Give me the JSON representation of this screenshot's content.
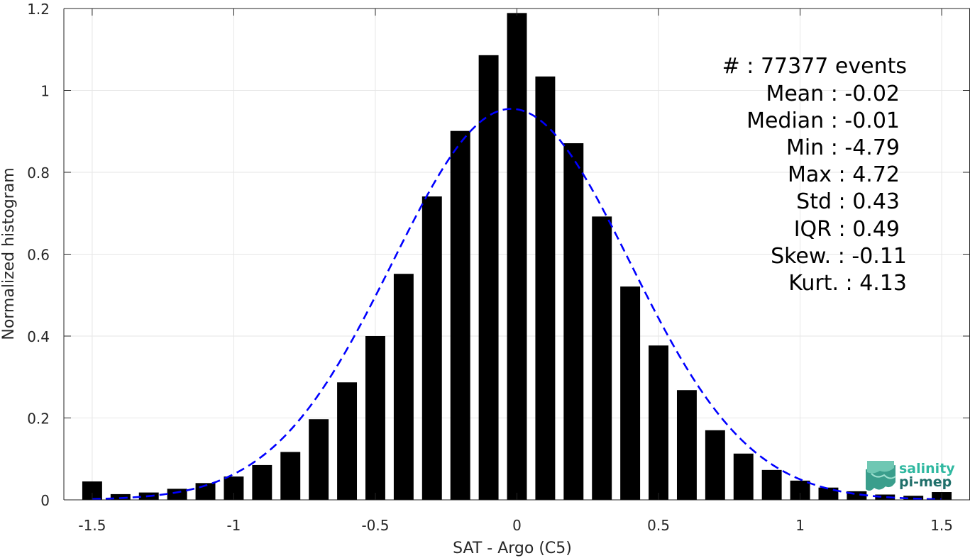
{
  "chart_data": {
    "type": "bar",
    "xlabel": "SAT - Argo (C5)",
    "ylabel": "Normalized histogram",
    "xlim": [
      -1.6,
      1.6
    ],
    "ylim": [
      0,
      1.2
    ],
    "xticks": [
      -1.5,
      -1,
      -0.5,
      0,
      0.5,
      1,
      1.5
    ],
    "xtick_labels": [
      "-1.5",
      "-1",
      "-0.5",
      "0",
      "0.5",
      "1",
      "1.5"
    ],
    "yticks": [
      0,
      0.2,
      0.4,
      0.6,
      0.8,
      1,
      1.2
    ],
    "ytick_labels": [
      "0",
      "0.2",
      "0.4",
      "0.6",
      "0.8",
      "1",
      "1.2"
    ],
    "grid": true,
    "bar_width": 0.07,
    "bins": [
      -1.5,
      -1.4,
      -1.3,
      -1.2,
      -1.1,
      -1.0,
      -0.9,
      -0.8,
      -0.7,
      -0.6,
      -0.5,
      -0.4,
      -0.3,
      -0.2,
      -0.1,
      0.0,
      0.1,
      0.2,
      0.3,
      0.4,
      0.5,
      0.6,
      0.7,
      0.8,
      0.9,
      1.0,
      1.1,
      1.2,
      1.3,
      1.4,
      1.5
    ],
    "values": [
      0.045,
      0.014,
      0.018,
      0.027,
      0.041,
      0.057,
      0.085,
      0.117,
      0.197,
      0.287,
      0.4,
      0.552,
      0.741,
      0.901,
      1.086,
      1.189,
      1.034,
      0.871,
      0.692,
      0.521,
      0.377,
      0.268,
      0.17,
      0.113,
      0.073,
      0.047,
      0.03,
      0.021,
      0.013,
      0.01,
      0.019
    ],
    "bar_color": "#000000",
    "fit": {
      "type": "gaussian",
      "mean": -0.02,
      "std": 0.42,
      "peak": 0.955,
      "color": "#0000ff",
      "style": "dashed"
    }
  },
  "stats": [
    "#  : 77377 events",
    "Mean : -0.02",
    "Median : -0.01",
    "Min : -4.79",
    "Max : 4.72",
    "Std : 0.43",
    "IQR : 0.49",
    "Skew. : -0.11",
    "Kurt. : 4.13"
  ],
  "logo": {
    "line1": "salinity",
    "line2": "pi-mep",
    "color1": "#2fb8a0",
    "color2": "#1f6f6a"
  }
}
